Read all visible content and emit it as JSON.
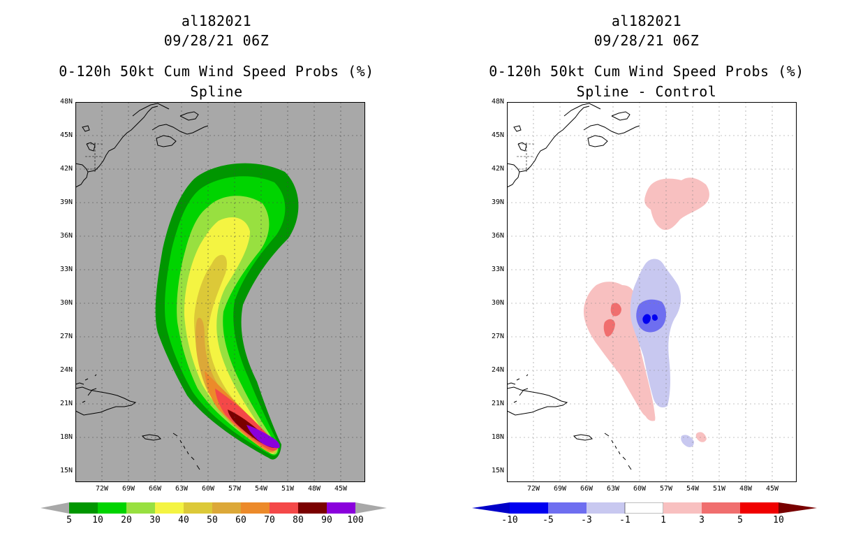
{
  "left": {
    "title_line1": "al182021",
    "title_line2": "09/28/21 06Z",
    "title_line3": "0-120h 50kt Cum Wind Speed Probs (%)",
    "title_line4": "Spline",
    "background": "#a8a8a8",
    "colorbar": {
      "labels": [
        "5",
        "10",
        "20",
        "30",
        "40",
        "50",
        "60",
        "70",
        "80",
        "90",
        "100"
      ],
      "colors": [
        "#009600",
        "#00d400",
        "#98e040",
        "#f4f442",
        "#dcc938",
        "#dca838",
        "#ec8a2a",
        "#f44848",
        "#7a0000",
        "#8a00dc"
      ]
    }
  },
  "right": {
    "title_line1": "al182021",
    "title_line2": "09/28/21 06Z",
    "title_line3": "0-120h 50kt Cum Wind Speed Probs (%)",
    "title_line4": "Spline - Control",
    "background": "#ffffff",
    "colorbar": {
      "labels": [
        "-10",
        "-5",
        "-3",
        "-1",
        "1",
        "3",
        "5",
        "10"
      ],
      "colors": [
        "#0000c8",
        "#0000f0",
        "#6e6ef0",
        "#c8c8f0",
        "#ffffff",
        "#f8c0c0",
        "#f06e6e",
        "#f00000",
        "#780000"
      ]
    }
  },
  "axes": {
    "lat_labels": [
      "48N",
      "45N",
      "42N",
      "39N",
      "36N",
      "33N",
      "30N",
      "27N",
      "24N",
      "21N",
      "18N",
      "15N"
    ],
    "lon_labels": [
      "72W",
      "69W",
      "66W",
      "63W",
      "60W",
      "57W",
      "54W",
      "51W",
      "48W",
      "45W"
    ]
  }
}
